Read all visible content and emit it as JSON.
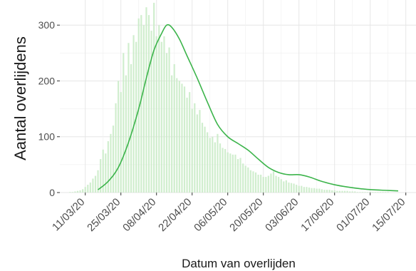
{
  "chart_data": {
    "type": "bar",
    "xlabel": "Datum van overlijden",
    "ylabel": "Aantal overlijdens",
    "ylim": [
      0,
      345
    ],
    "y_ticks": [
      0,
      100,
      200,
      300
    ],
    "grid": true,
    "bar_color": "#c8ebc6",
    "line_color": "#3cb44b",
    "x_start": "2020-03-01",
    "x_end": "2020-07-19",
    "x_ticks": [
      {
        "date": "2020-03-11",
        "label": "11/03/20"
      },
      {
        "date": "2020-03-25",
        "label": "25/03/20"
      },
      {
        "date": "2020-04-08",
        "label": "08/04/20"
      },
      {
        "date": "2020-04-22",
        "label": "22/04/20"
      },
      {
        "date": "2020-05-06",
        "label": "06/05/20"
      },
      {
        "date": "2020-05-20",
        "label": "20/05/20"
      },
      {
        "date": "2020-06-03",
        "label": "03/06/20"
      },
      {
        "date": "2020-06-17",
        "label": "17/06/20"
      },
      {
        "date": "2020-07-01",
        "label": "01/07/20"
      },
      {
        "date": "2020-07-15",
        "label": "15/07/20"
      }
    ],
    "bar_values": [
      [
        0,
        0,
        0,
        0,
        1,
        1,
        2,
        3,
        4,
        6
      ],
      [
        10,
        14,
        18,
        25,
        30,
        40,
        60,
        77,
        70,
        92,
        105,
        120,
        160,
        200,
        180,
        250,
        210,
        268,
        230,
        282
      ],
      [
        270,
        312,
        318,
        300,
        332,
        318,
        290,
        340,
        280,
        300,
        270,
        280,
        250,
        260,
        210,
        230,
        205,
        200,
        195,
        190
      ],
      [
        170,
        180,
        150,
        160,
        140,
        148,
        125,
        118,
        108,
        98,
        100,
        90,
        105,
        88,
        80,
        78,
        72,
        70,
        68,
        68
      ],
      [
        60,
        62,
        52,
        48,
        45,
        40,
        38,
        36,
        32,
        32,
        28,
        28,
        30,
        34,
        38,
        30,
        28,
        24,
        20,
        22
      ],
      [
        18,
        17,
        16,
        14,
        12,
        12,
        10,
        10,
        9,
        8,
        8,
        7,
        7,
        6,
        5,
        5,
        5,
        4,
        4,
        3
      ],
      [
        3,
        3,
        3,
        3,
        2,
        2,
        2,
        1,
        1,
        1,
        1,
        1,
        1,
        1,
        1,
        1,
        1,
        1,
        1,
        1
      ]
    ],
    "trend": [
      {
        "date": "2020-03-16",
        "value": 5
      },
      {
        "date": "2020-03-20",
        "value": 20
      },
      {
        "date": "2020-03-24",
        "value": 45
      },
      {
        "date": "2020-03-28",
        "value": 90
      },
      {
        "date": "2020-04-01",
        "value": 150
      },
      {
        "date": "2020-04-04",
        "value": 205
      },
      {
        "date": "2020-04-07",
        "value": 255
      },
      {
        "date": "2020-04-10",
        "value": 285
      },
      {
        "date": "2020-04-12",
        "value": 300
      },
      {
        "date": "2020-04-14",
        "value": 296
      },
      {
        "date": "2020-04-17",
        "value": 275
      },
      {
        "date": "2020-04-20",
        "value": 245
      },
      {
        "date": "2020-04-24",
        "value": 205
      },
      {
        "date": "2020-04-28",
        "value": 162
      },
      {
        "date": "2020-05-02",
        "value": 122
      },
      {
        "date": "2020-05-06",
        "value": 100
      },
      {
        "date": "2020-05-10",
        "value": 88
      },
      {
        "date": "2020-05-14",
        "value": 76
      },
      {
        "date": "2020-05-18",
        "value": 60
      },
      {
        "date": "2020-05-22",
        "value": 45
      },
      {
        "date": "2020-05-26",
        "value": 36
      },
      {
        "date": "2020-05-30",
        "value": 32
      },
      {
        "date": "2020-06-03",
        "value": 32
      },
      {
        "date": "2020-06-07",
        "value": 28
      },
      {
        "date": "2020-06-12",
        "value": 20
      },
      {
        "date": "2020-06-17",
        "value": 14
      },
      {
        "date": "2020-06-22",
        "value": 10
      },
      {
        "date": "2020-06-27",
        "value": 7
      },
      {
        "date": "2020-07-02",
        "value": 5
      },
      {
        "date": "2020-07-07",
        "value": 4
      },
      {
        "date": "2020-07-12",
        "value": 3
      }
    ]
  }
}
